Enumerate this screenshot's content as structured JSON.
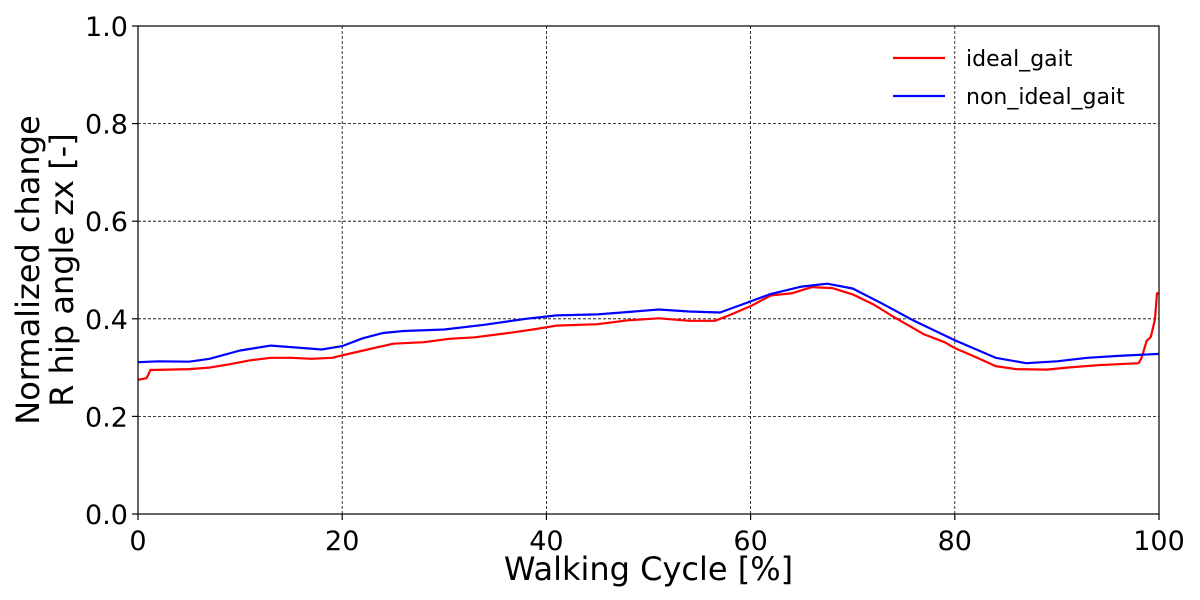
{
  "chart_data": {
    "type": "line",
    "title": "",
    "xlabel": "Walking Cycle [%]",
    "ylabel_lines": [
      "Normalized change",
      "R hip angle zx [-]"
    ],
    "xlim": [
      0,
      100
    ],
    "ylim": [
      0.0,
      1.0
    ],
    "xticks": [
      0,
      20,
      40,
      60,
      80,
      100
    ],
    "xtick_labels": [
      "0",
      "20",
      "40",
      "60",
      "80",
      "100"
    ],
    "yticks": [
      0.0,
      0.2,
      0.4,
      0.6,
      0.8,
      1.0
    ],
    "ytick_labels": [
      "0.0",
      "0.2",
      "0.4",
      "0.6",
      "0.8",
      "1.0"
    ],
    "grid": true,
    "legend_position": "top-right",
    "series": [
      {
        "name": "ideal_gait",
        "color": "#ff0000",
        "x": [
          0,
          0.8,
          1.0,
          1.2,
          3,
          5,
          7,
          9,
          11,
          13,
          15,
          17,
          19,
          21,
          22.5,
          23.3,
          25,
          28,
          30.5,
          33,
          36,
          39,
          41,
          45,
          48,
          51,
          54,
          56.5,
          58,
          60,
          62,
          64,
          66,
          68,
          70,
          72,
          74,
          76,
          77,
          78,
          79,
          80,
          82,
          84,
          86,
          89,
          91,
          94,
          98,
          98.3,
          98.8,
          99.2,
          99.6,
          99.8,
          100
        ],
        "y": [
          0.275,
          0.278,
          0.285,
          0.295,
          0.296,
          0.297,
          0.3,
          0.307,
          0.315,
          0.32,
          0.32,
          0.318,
          0.32,
          0.33,
          0.337,
          0.341,
          0.349,
          0.352,
          0.359,
          0.362,
          0.37,
          0.379,
          0.386,
          0.389,
          0.397,
          0.401,
          0.396,
          0.396,
          0.408,
          0.426,
          0.448,
          0.452,
          0.465,
          0.463,
          0.45,
          0.43,
          0.404,
          0.38,
          0.368,
          0.36,
          0.352,
          0.34,
          0.322,
          0.303,
          0.297,
          0.296,
          0.3,
          0.305,
          0.309,
          0.32,
          0.355,
          0.363,
          0.398,
          0.452,
          0.452
        ]
      },
      {
        "name": "non_ideal_gait",
        "color": "#0000ff",
        "x": [
          0,
          2,
          5,
          7,
          10,
          13,
          15,
          18,
          20,
          22,
          24,
          26,
          30,
          34,
          38,
          41,
          45,
          48,
          51,
          54,
          57,
          59,
          62,
          65,
          67.5,
          70,
          73,
          76,
          80,
          84,
          87,
          90,
          93,
          96,
          100
        ],
        "y": [
          0.311,
          0.313,
          0.312,
          0.318,
          0.335,
          0.345,
          0.342,
          0.337,
          0.344,
          0.36,
          0.371,
          0.375,
          0.378,
          0.388,
          0.4,
          0.407,
          0.409,
          0.414,
          0.419,
          0.415,
          0.413,
          0.428,
          0.451,
          0.466,
          0.472,
          0.462,
          0.43,
          0.396,
          0.356,
          0.32,
          0.309,
          0.313,
          0.32,
          0.324,
          0.328
        ]
      }
    ]
  }
}
